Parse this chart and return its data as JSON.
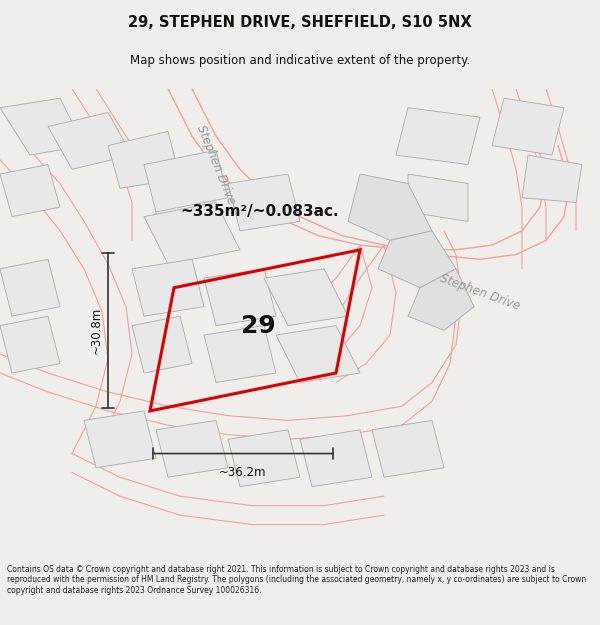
{
  "title_line1": "29, STEPHEN DRIVE, SHEFFIELD, S10 5NX",
  "title_line2": "Map shows position and indicative extent of the property.",
  "area_text": "~335m²/~0.083ac.",
  "number_text": "29",
  "dim_width": "~36.2m",
  "dim_height": "~30.8m",
  "footer_text": "Contains OS data © Crown copyright and database right 2021. This information is subject to Crown copyright and database rights 2023 and is reproduced with the permission of HM Land Registry. The polygons (including the associated geometry, namely x, y co-ordinates) are subject to Crown copyright and database rights 2023 Ordnance Survey 100026316.",
  "bg_color": "#f0eeea",
  "map_bg": "#ffffff",
  "street_color": "#f0a0a0",
  "building_fill": "#e8e8e8",
  "building_edge": "#aaaaaa",
  "property_color": "#dd0000",
  "road_label_color": "#999999",
  "text_color": "#111111",
  "footer_color": "#222222",
  "sep_color": "#cccccc"
}
